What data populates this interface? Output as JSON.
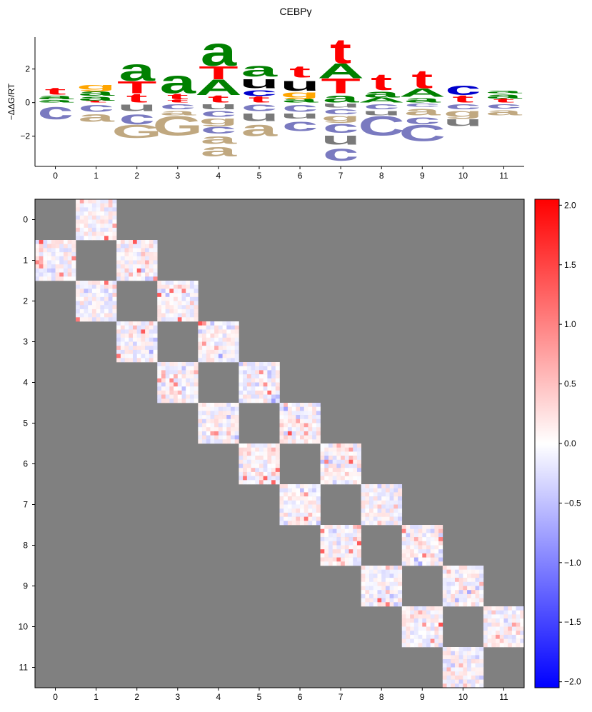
{
  "figure": {
    "title": "CEBPγ"
  },
  "chart_data": [
    {
      "type": "sequence-logo",
      "ylabel": "−ΔΔG/RT",
      "positions": [
        "0",
        "1",
        "2",
        "3",
        "4",
        "5",
        "6",
        "7",
        "8",
        "9",
        "10",
        "11"
      ],
      "ylim": [
        -3.8,
        3.9
      ],
      "yticks": [
        "2",
        "0",
        "−2"
      ],
      "colors": {
        "a": "#008000",
        "c": "#0000cc",
        "g": "#ffa500",
        "t": "#ff0000",
        "u": "#000000"
      },
      "positive": [
        [
          {
            "b": "a",
            "h": 0.2
          },
          {
            "b": "a",
            "h": 0.28
          },
          {
            "b": "t",
            "h": 0.42
          }
        ],
        [
          {
            "b": "t",
            "h": 0.12
          },
          {
            "b": "a",
            "h": 0.3
          },
          {
            "b": "a",
            "h": 0.35
          },
          {
            "b": "g",
            "h": 0.38
          }
        ],
        [
          {
            "b": "t",
            "h": 0.55
          },
          {
            "b": "T",
            "h": 0.75
          },
          {
            "b": "a",
            "h": 1.3
          }
        ],
        [
          {
            "b": "t",
            "h": 0.2
          },
          {
            "b": "t",
            "h": 0.35
          },
          {
            "b": "a",
            "h": 1.4
          }
        ],
        [
          {
            "b": "t",
            "h": 0.45
          },
          {
            "b": "A",
            "h": 0.95
          },
          {
            "b": "T",
            "h": 0.8
          },
          {
            "b": "a",
            "h": 1.75
          }
        ],
        [
          {
            "b": "t",
            "h": 0.4
          },
          {
            "b": "c",
            "h": 0.45
          },
          {
            "b": "u",
            "h": 0.7
          },
          {
            "b": "a",
            "h": 0.85
          }
        ],
        [
          {
            "b": "a",
            "h": 0.3
          },
          {
            "b": "g",
            "h": 0.4
          },
          {
            "b": "u",
            "h": 0.8
          },
          {
            "b": "t",
            "h": 0.7
          }
        ],
        [
          {
            "b": "a",
            "h": 0.55
          },
          {
            "b": "T",
            "h": 0.9
          },
          {
            "b": "A",
            "h": 0.9
          },
          {
            "b": "t",
            "h": 1.5
          }
        ],
        [
          {
            "b": "A",
            "h": 0.3
          },
          {
            "b": "a",
            "h": 0.45
          },
          {
            "b": "t",
            "h": 1.0
          }
        ],
        [
          {
            "b": "a",
            "h": 0.35
          },
          {
            "b": "A",
            "h": 0.5
          },
          {
            "b": "t",
            "h": 1.1
          }
        ],
        [
          {
            "b": "t",
            "h": 0.45
          },
          {
            "b": "c",
            "h": 0.75
          }
        ],
        [
          {
            "b": "t",
            "h": 0.25
          },
          {
            "b": "a",
            "h": 0.3
          },
          {
            "b": "a",
            "h": 0.2
          }
        ]
      ],
      "negative": [
        [
          {
            "b": "c",
            "h": 1.0
          }
        ],
        [
          {
            "b": "c",
            "h": 0.55
          },
          {
            "b": "a",
            "h": 0.6
          }
        ],
        [
          {
            "b": "u",
            "h": 0.5
          },
          {
            "b": "c",
            "h": 0.8
          },
          {
            "b": "G",
            "h": 0.8
          }
        ],
        [
          {
            "b": "c",
            "h": 0.4
          },
          {
            "b": "a",
            "h": 0.35
          },
          {
            "b": "G",
            "h": 1.2
          }
        ],
        [
          {
            "b": "u",
            "h": 0.4
          },
          {
            "b": "c",
            "h": 0.45
          },
          {
            "b": "g",
            "h": 0.45
          },
          {
            "b": "c",
            "h": 0.55
          },
          {
            "b": "a",
            "h": 0.6
          },
          {
            "b": "a",
            "h": 0.75
          }
        ],
        [
          {
            "b": "c",
            "h": 0.5
          },
          {
            "b": "u",
            "h": 0.6
          },
          {
            "b": "a",
            "h": 0.9
          }
        ],
        [
          {
            "b": "c",
            "h": 0.55
          },
          {
            "b": "u",
            "h": 0.4
          },
          {
            "b": "c",
            "h": 0.75
          }
        ],
        [
          {
            "b": "u",
            "h": 0.3
          },
          {
            "b": "c",
            "h": 0.4
          },
          {
            "b": "g",
            "h": 0.4
          },
          {
            "b": "c",
            "h": 0.7
          },
          {
            "b": "u",
            "h": 0.7
          },
          {
            "b": "c",
            "h": 0.95
          }
        ],
        [
          {
            "b": "c",
            "h": 0.4
          },
          {
            "b": "u",
            "h": 0.35
          },
          {
            "b": "C",
            "h": 1.2
          }
        ],
        [
          {
            "b": "c",
            "h": 0.25
          },
          {
            "b": "a",
            "h": 0.5
          },
          {
            "b": "c",
            "h": 0.55
          },
          {
            "b": "C",
            "h": 1.0
          }
        ],
        [
          {
            "b": "c",
            "h": 0.4
          },
          {
            "b": "g",
            "h": 0.45
          },
          {
            "b": "u",
            "h": 0.55
          }
        ],
        [
          {
            "b": "c",
            "h": 0.35
          },
          {
            "b": "a",
            "h": 0.4
          }
        ]
      ]
    },
    {
      "type": "heatmap",
      "rows": [
        "0",
        "1",
        "2",
        "3",
        "4",
        "5",
        "6",
        "7",
        "8",
        "9",
        "10",
        "11"
      ],
      "cols": [
        "0",
        "1",
        "2",
        "3",
        "4",
        "5",
        "6",
        "7",
        "8",
        "9",
        "10",
        "11"
      ],
      "block_pattern": "only blocks with |row-col| = 1 are shown; other cells are masked grey",
      "cells_per_block": 10,
      "value_range": [
        -2.05,
        2.05
      ],
      "colormap": "bwr",
      "masked_color": "#808080",
      "colorbar_ticks": [
        "2.0",
        "1.5",
        "1.0",
        "0.5",
        "0.0",
        "−0.5",
        "−1.0",
        "−1.5",
        "−2.0"
      ],
      "colorbar_tick_values": [
        2.0,
        1.5,
        1.0,
        0.5,
        0.0,
        -0.5,
        -1.0,
        -1.5,
        -2.0
      ]
    }
  ]
}
